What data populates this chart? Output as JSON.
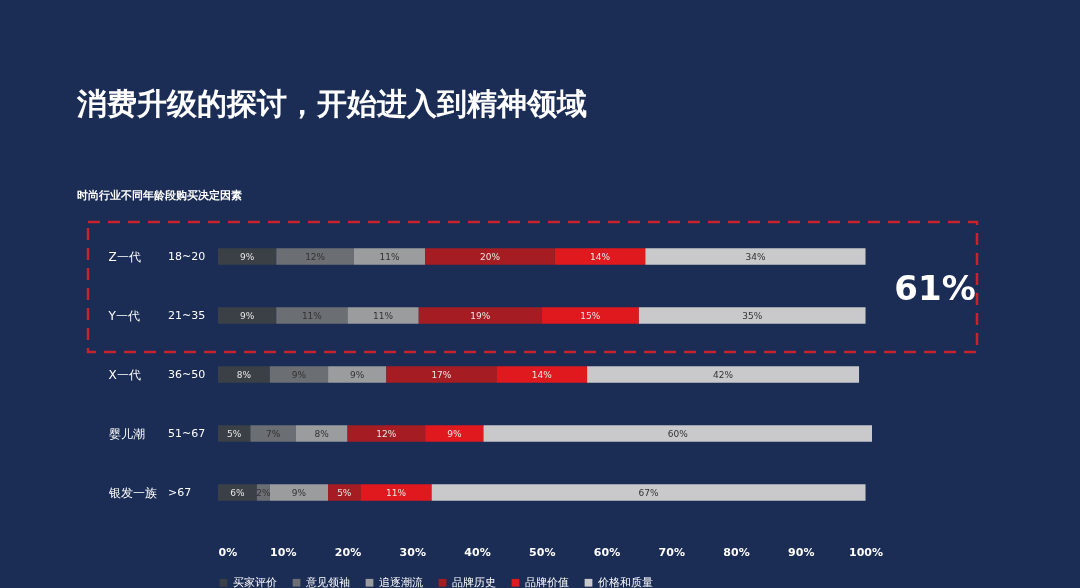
{
  "chart_data": {
    "type": "bar",
    "orientation": "horizontal",
    "stacked": true,
    "title": "消费升级的探讨，开始进入到精神领域",
    "subtitle": "时尚行业不同年龄段购买决定因素",
    "categories": [
      "Z一代",
      "Y一代",
      "X一代",
      "婴儿潮",
      "银发一族"
    ],
    "series": [
      {
        "name": "买家评价",
        "color": "#3b4047",
        "values": [
          9,
          9,
          8,
          5,
          6
        ],
        "value_labels": [
          "9%",
          "9%",
          "8%",
          "5%",
          "6%"
        ]
      },
      {
        "name": "意见领袖",
        "color": "#6b6e73",
        "values": [
          12,
          11,
          9,
          7,
          2
        ],
        "value_labels": [
          "12%",
          "11%",
          "9%",
          "7%",
          "2%"
        ]
      },
      {
        "name": "追逐潮流",
        "color": "#9b9c9e",
        "values": [
          11,
          11,
          9,
          8,
          9
        ],
        "value_labels": [
          "11%",
          "11%",
          "9%",
          "8%",
          "9%"
        ]
      },
      {
        "name": "品牌历史",
        "color": "#a51d22",
        "values": [
          20,
          19,
          17,
          12,
          5
        ],
        "value_labels": [
          "20%",
          "19%",
          "17%",
          "12%",
          "5%"
        ]
      },
      {
        "name": "品牌价值",
        "color": "#e0191f",
        "values": [
          14,
          15,
          14,
          9,
          11
        ],
        "value_labels": [
          "14%",
          "15%",
          "14%",
          "9%",
          "11%"
        ]
      },
      {
        "name": "价格和质量",
        "color": "#c9c9cb",
        "values": [
          34,
          35,
          42,
          60,
          67
        ],
        "value_labels": [
          "34%",
          "35%",
          "42%",
          "60%",
          "67%"
        ]
      }
    ],
    "xlim": [
      0,
      101
    ],
    "xticks": [
      {
        "value": 0,
        "label": "0%"
      },
      {
        "value": 10,
        "label": "10%"
      },
      {
        "value": 20,
        "label": "20%"
      },
      {
        "value": 30,
        "label": "30%"
      },
      {
        "value": 40,
        "label": "40%"
      },
      {
        "value": 50,
        "label": "50%"
      },
      {
        "value": 60,
        "label": "60%"
      },
      {
        "value": 70,
        "label": "70%"
      },
      {
        "value": 80,
        "label": "80%"
      },
      {
        "value": 90,
        "label": "90%"
      },
      {
        "value": 100,
        "label": "100%"
      }
    ],
    "annotations": [
      "18~20",
      "21~35",
      "36~50",
      "51~67",
      ">67",
      "61%"
    ],
    "grid": false,
    "legend": "bottom"
  }
}
